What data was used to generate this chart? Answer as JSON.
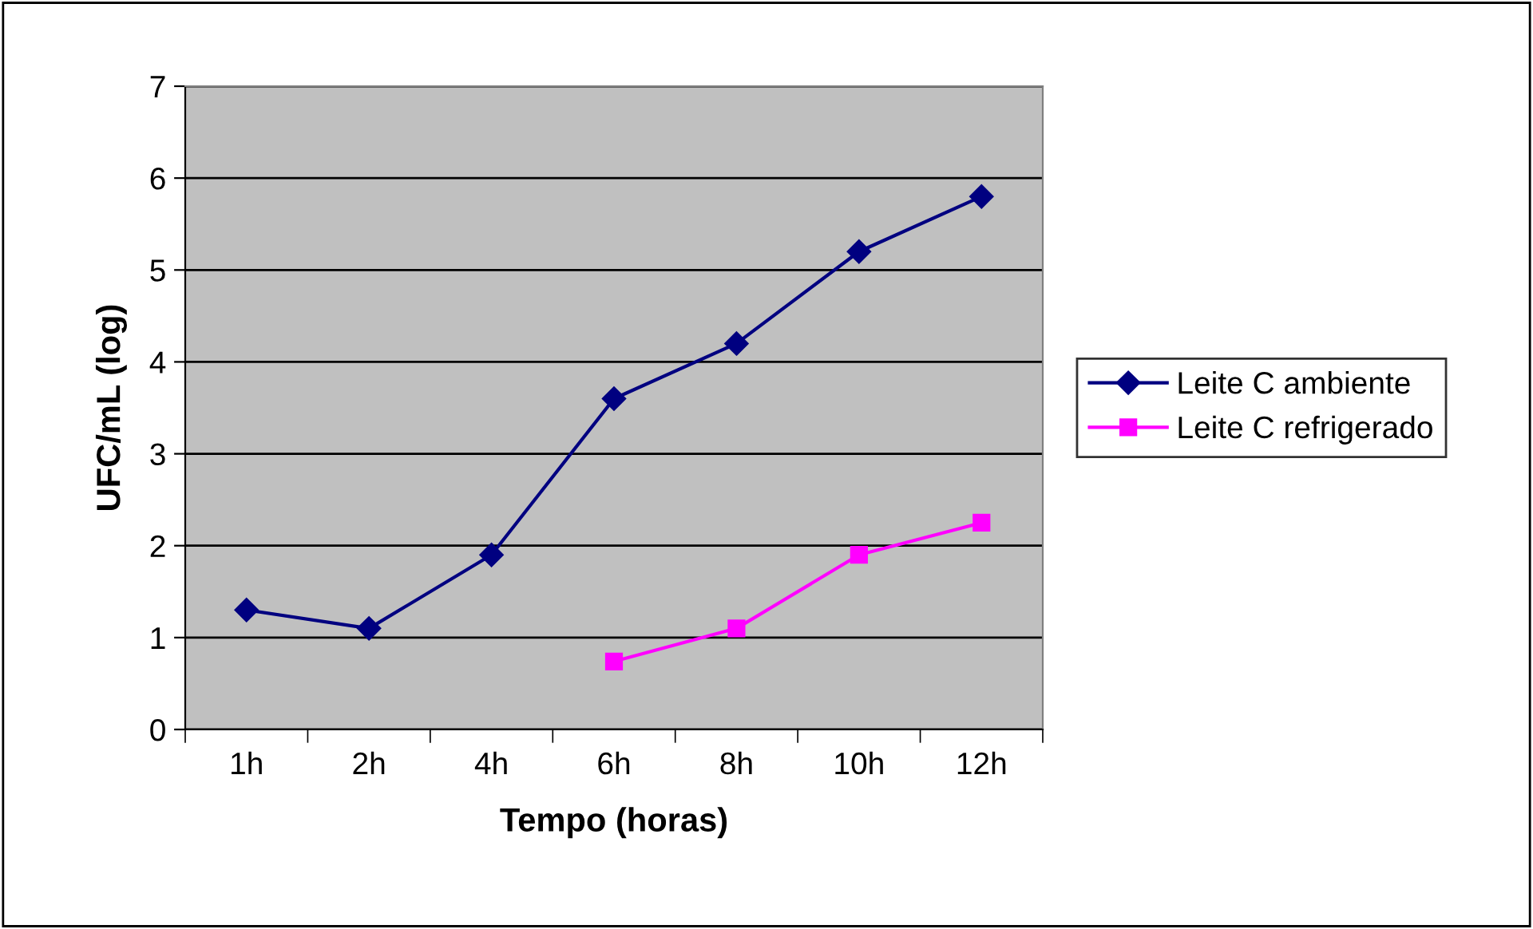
{
  "chart_data": {
    "type": "line",
    "xlabel": "Tempo (horas)",
    "ylabel": "UFC/mL (log)",
    "categories": [
      "1h",
      "2h",
      "4h",
      "6h",
      "8h",
      "10h",
      "12h"
    ],
    "series": [
      {
        "name": "Leite C ambiente",
        "color": "#000080",
        "marker": "diamond",
        "values": [
          1.3,
          1.1,
          1.9,
          3.6,
          4.2,
          5.2,
          5.8
        ]
      },
      {
        "name": "Leite C refrigerado",
        "color": "#ff00ff",
        "marker": "square",
        "values": [
          null,
          null,
          null,
          0.74,
          1.1,
          1.9,
          2.25
        ]
      }
    ],
    "ylim": [
      0,
      7
    ],
    "yticks": [
      0,
      1,
      2,
      3,
      4,
      5,
      6,
      7
    ],
    "grid": "y",
    "legend": "right",
    "line_style": "solid"
  }
}
